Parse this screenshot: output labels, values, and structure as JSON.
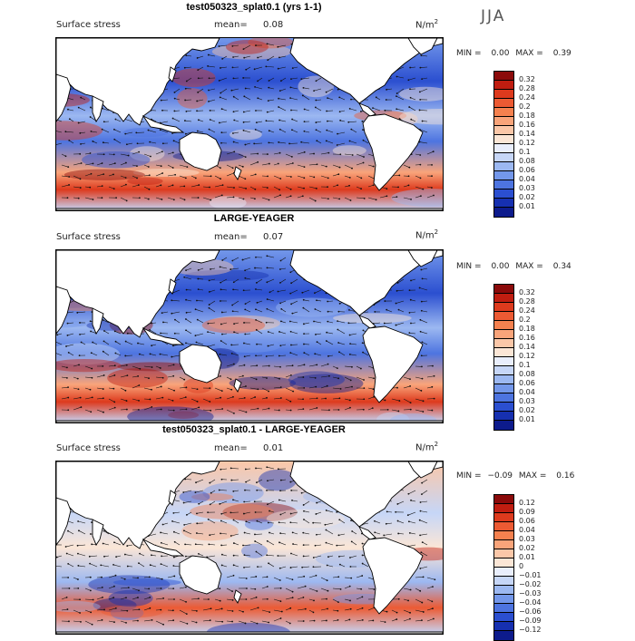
{
  "season": "JJA",
  "units": {
    "base": "N/m",
    "exp": "2"
  },
  "panels": [
    {
      "title": "test050323_splat0.1 (yrs 1-1)",
      "field_label": "Surface stress",
      "mean_label": "mean=",
      "mean_value": "0.08",
      "min_label": "MIN =",
      "min_value": "0.00",
      "max_label": "MAX =",
      "max_value": "0.39",
      "colorbar": {
        "ticks": [
          "0.32",
          "0.28",
          "0.24",
          "0.2",
          "0.18",
          "0.16",
          "0.14",
          "0.12",
          "0.1",
          "0.08",
          "0.06",
          "0.04",
          "0.03",
          "0.02",
          "0.01"
        ],
        "colors": [
          "#8b0a0a",
          "#c01d10",
          "#dd3a1d",
          "#ec5a33",
          "#f5814f",
          "#f9a47a",
          "#fbc7a8",
          "#fbe6d6",
          "#e9eefc",
          "#c6d6f7",
          "#9cb8f1",
          "#7397ea",
          "#4d74e0",
          "#2b4fd0",
          "#1630b0",
          "#0d1b8c"
        ]
      }
    },
    {
      "title": "LARGE-YEAGER",
      "field_label": "Surface stress",
      "mean_label": "mean=",
      "mean_value": "0.07",
      "min_label": "MIN =",
      "min_value": "0.00",
      "max_label": "MAX =",
      "max_value": "0.34",
      "colorbar": {
        "ticks": [
          "0.32",
          "0.28",
          "0.24",
          "0.2",
          "0.18",
          "0.16",
          "0.14",
          "0.12",
          "0.1",
          "0.08",
          "0.06",
          "0.04",
          "0.03",
          "0.02",
          "0.01"
        ],
        "colors": [
          "#8b0a0a",
          "#c01d10",
          "#dd3a1d",
          "#ec5a33",
          "#f5814f",
          "#f9a47a",
          "#fbc7a8",
          "#fbe6d6",
          "#e9eefc",
          "#c6d6f7",
          "#9cb8f1",
          "#7397ea",
          "#4d74e0",
          "#2b4fd0",
          "#1630b0",
          "#0d1b8c"
        ]
      }
    },
    {
      "title": "test050323_splat0.1 - LARGE-YEAGER",
      "field_label": "Surface stress",
      "mean_label": "mean=",
      "mean_value": "0.01",
      "min_label": "MIN =",
      "min_value": "−0.09",
      "max_label": "MAX =",
      "max_value": "0.16",
      "colorbar": {
        "ticks": [
          "0.12",
          "0.09",
          "0.06",
          "0.04",
          "0.03",
          "0.02",
          "0.01",
          "0",
          "−0.01",
          "−0.02",
          "−0.03",
          "−0.04",
          "−0.06",
          "−0.09",
          "−0.12"
        ],
        "colors": [
          "#8b0a0a",
          "#c01d10",
          "#dd3a1d",
          "#ec5a33",
          "#f5814f",
          "#f9a47a",
          "#fbc7a8",
          "#fbe6d6",
          "#e9eefc",
          "#c6d6f7",
          "#9cb8f1",
          "#7397ea",
          "#4d74e0",
          "#2b4fd0",
          "#1630b0",
          "#0d1b8c"
        ]
      }
    }
  ],
  "map_style": {
    "land": "#ffffff",
    "coast": "#000000",
    "arrow": "#111111"
  }
}
